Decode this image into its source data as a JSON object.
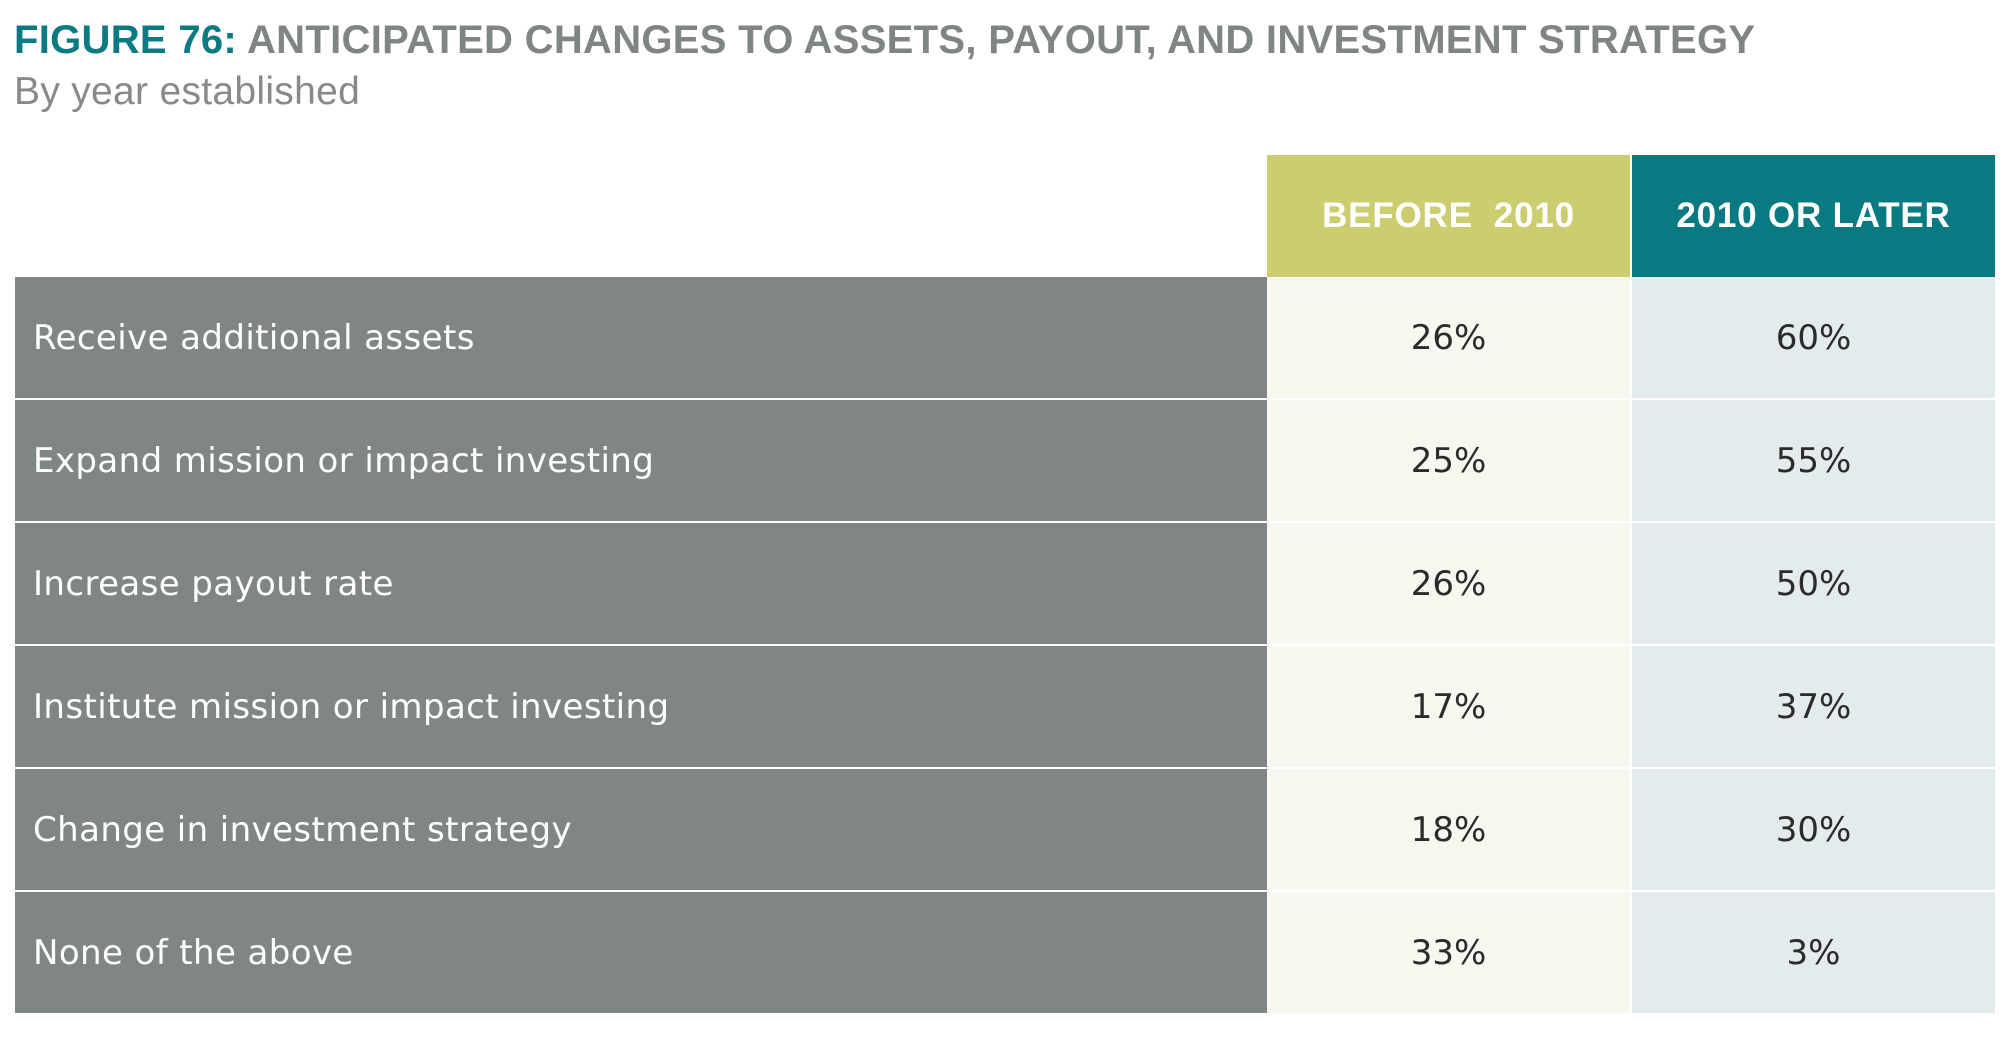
{
  "title": {
    "figure_label": "FIGURE 76:",
    "text": "ANTICIPATED CHANGES TO ASSETS, PAYOUT, AND INVESTMENT STRATEGY"
  },
  "subtitle": "By year established",
  "colors": {
    "figure_label": "#0b7a83",
    "title_text": "#7f8583",
    "before_2010_header": "#cbcd6e",
    "after_2010_header": "#0a7a82",
    "row_label_bg": "#808684",
    "before_2010_cell_bg": "#f6f7ee",
    "after_2010_cell_bg": "#e4ebed"
  },
  "chart_data": {
    "type": "table",
    "title": "FIGURE 76: ANTICIPATED CHANGES TO ASSETS, PAYOUT, AND INVESTMENT STRATEGY",
    "subtitle": "By year established",
    "columns": [
      "BEFORE  2010",
      "2010 OR LATER"
    ],
    "rows": [
      {
        "label": "Receive additional assets",
        "values": [
          "26%",
          "60%"
        ]
      },
      {
        "label": "Expand mission or impact investing",
        "values": [
          "25%",
          "55%"
        ]
      },
      {
        "label": "Increase payout rate",
        "values": [
          "26%",
          "50%"
        ]
      },
      {
        "label": "Institute mission or impact investing",
        "values": [
          "17%",
          "37%"
        ]
      },
      {
        "label": "Change in investment strategy",
        "values": [
          "18%",
          "30%"
        ]
      },
      {
        "label": "None of the above",
        "values": [
          "33%",
          "3%"
        ]
      }
    ]
  }
}
